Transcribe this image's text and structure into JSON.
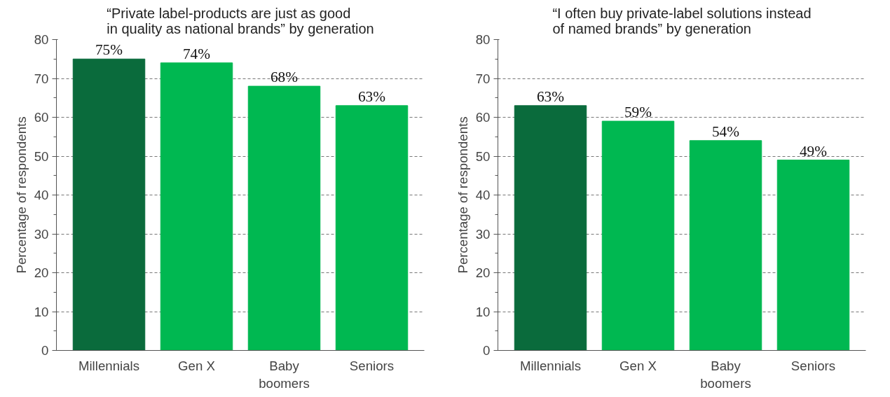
{
  "chart_data": [
    {
      "type": "bar",
      "title": "“Private label-products are just as good\nin quality as national brands” by generation",
      "ylabel": "Percentage of respondents",
      "categories": [
        "Millennials",
        "Gen X",
        "Baby boomers",
        "Seniors"
      ],
      "values": [
        75,
        74,
        68,
        63
      ],
      "colors": [
        "#0a6b3c",
        "#00b851",
        "#00b851",
        "#00b851"
      ],
      "value_labels": [
        "75%",
        "74%",
        "68%",
        "63%"
      ],
      "ylim": [
        0,
        80
      ],
      "yticks": [
        0,
        10,
        20,
        30,
        40,
        50,
        60,
        70,
        80
      ],
      "grid": "y"
    },
    {
      "type": "bar",
      "title": "“I often buy private-label solutions instead\nof named brands” by generation",
      "ylabel": "Percentage of respondents",
      "categories": [
        "Millennials",
        "Gen X",
        "Baby boomers",
        "Seniors"
      ],
      "values": [
        63,
        59,
        54,
        49
      ],
      "colors": [
        "#0a6b3c",
        "#00b851",
        "#00b851",
        "#00b851"
      ],
      "value_labels": [
        "63%",
        "59%",
        "54%",
        "49%"
      ],
      "ylim": [
        0,
        80
      ],
      "yticks": [
        0,
        10,
        20,
        30,
        40,
        50,
        60,
        70,
        80
      ],
      "grid": "y"
    }
  ]
}
